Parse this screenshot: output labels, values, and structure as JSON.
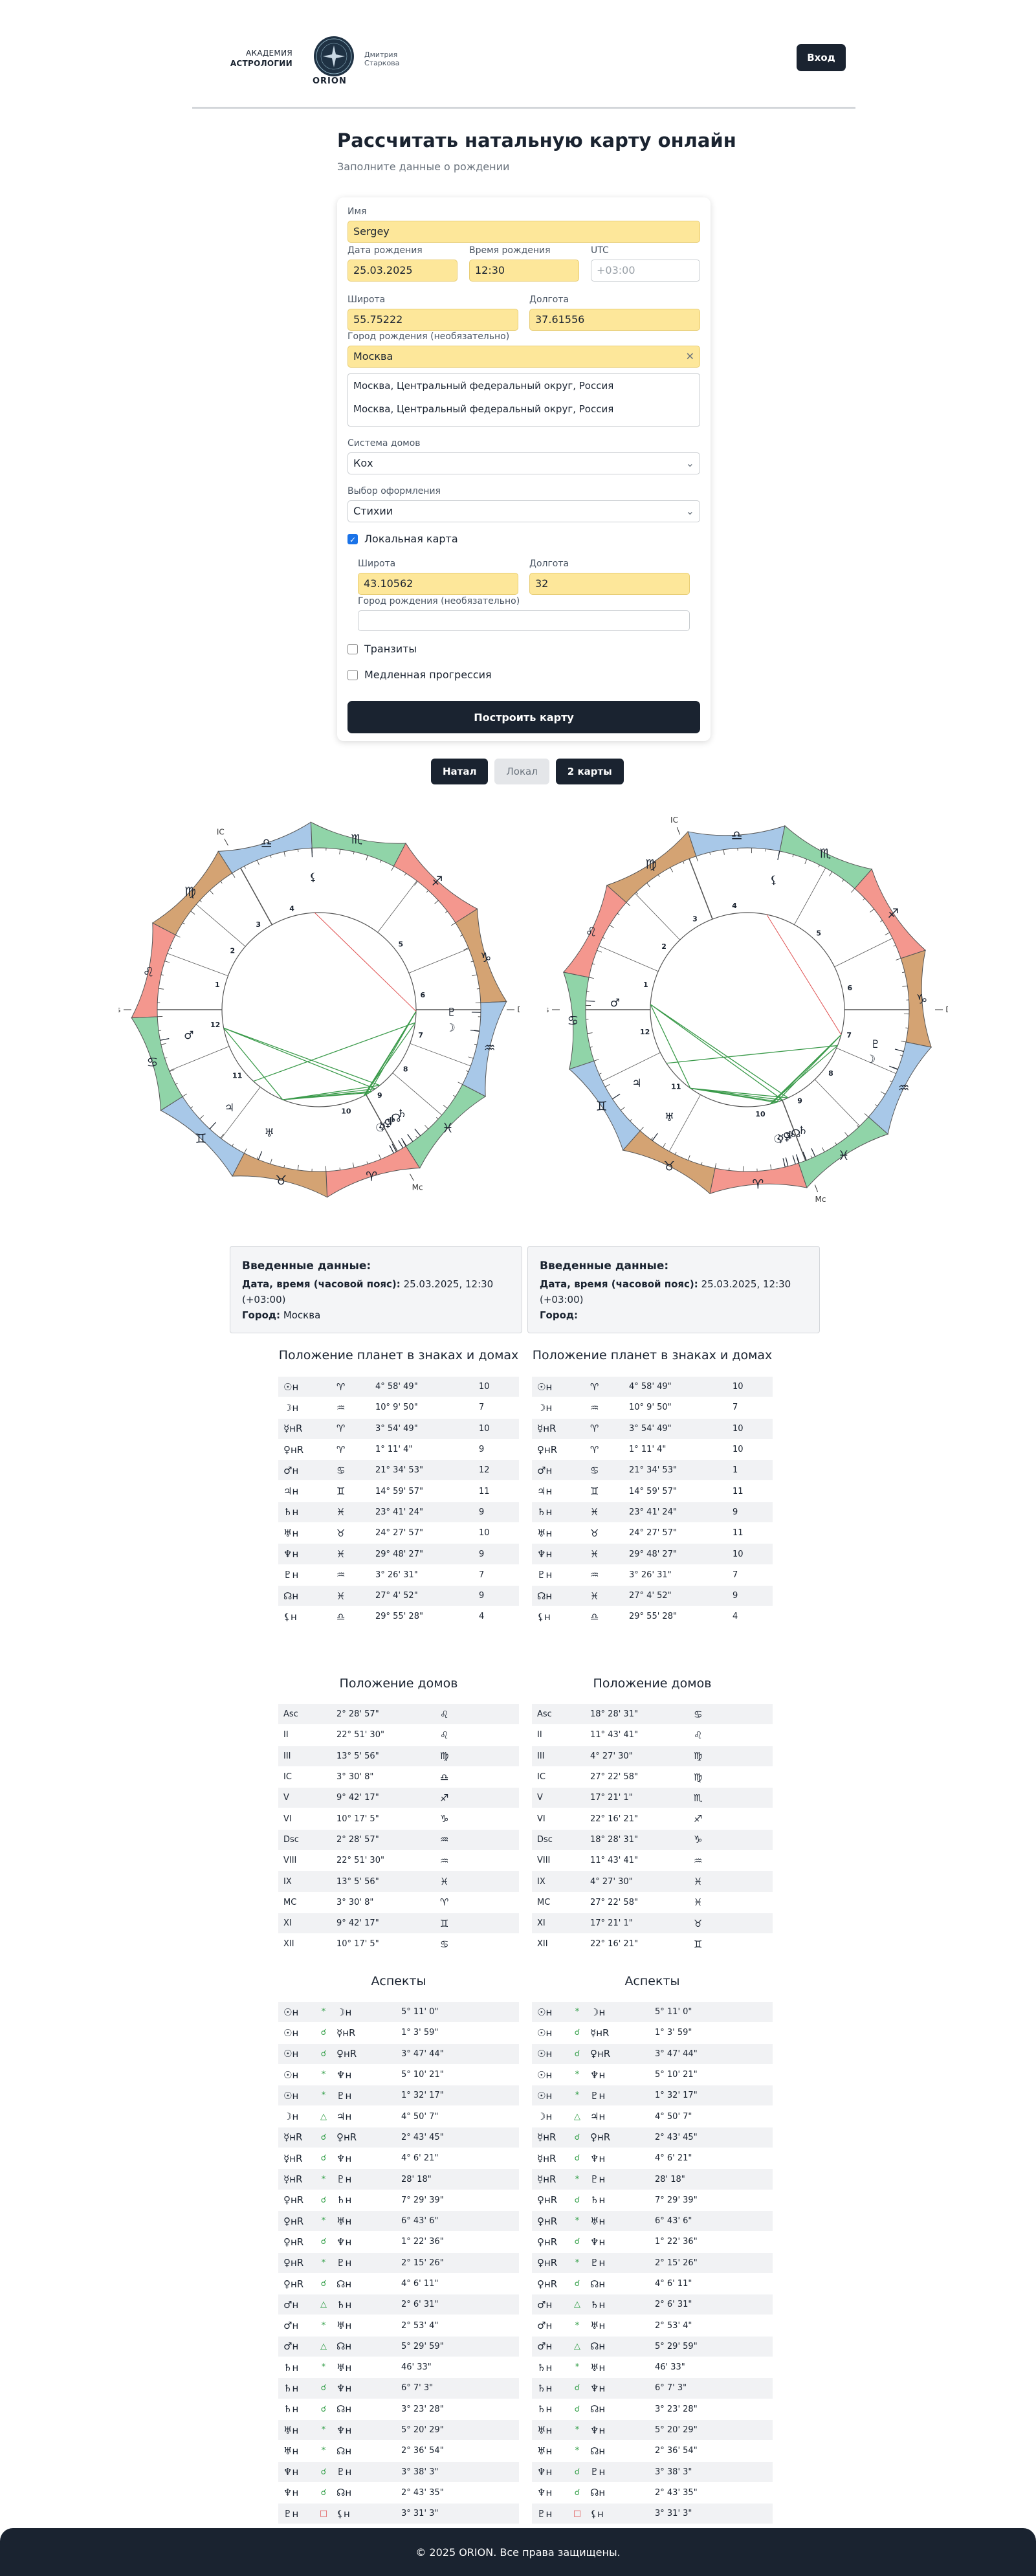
{
  "header": {
    "academy_line1": "АКАДЕМИЯ",
    "academy_line2": "АСТРОЛОГИИ",
    "orion": "ORION",
    "author": "Дмитрия Старкова",
    "login": "Вход"
  },
  "page": {
    "title": "Рассчитать натальную карту онлайн",
    "subtitle": "Заполните данные о рождении"
  },
  "form": {
    "name_label": "Имя",
    "name_value": "Sergey",
    "date_label": "Дата рождения",
    "date_value": "25.03.2025",
    "time_label": "Время рождения",
    "time_value": "12:30",
    "utc_label": "UTC",
    "utc_placeholder": "+03:00",
    "lat_label": "Широта",
    "lat_value": "55.75222",
    "lon_label": "Долгота",
    "lon_value": "37.61556",
    "city_label": "Город рождения (необязательно)",
    "city_value": "Москва",
    "suggestions": [
      "Москва, Центральный федеральный округ, Россия",
      "Москва, Центральный федеральный округ, Россия"
    ],
    "house_label": "Система домов",
    "house_value": "Кох",
    "style_label": "Выбор оформления",
    "style_value": "Стихии",
    "local_label": "Локальная карта",
    "local_lat_label": "Широта",
    "local_lat_value": "43.10562",
    "local_lon_label": "Долгота",
    "local_lon_value": "32",
    "local_city_label": "Город рождения (необязательно)",
    "transits_label": "Транзиты",
    "progress_label": "Медленная прогрессия",
    "build": "Построить карту"
  },
  "tabs": [
    "Натал",
    "Локал",
    "2 карты"
  ],
  "chart_labels": {
    "asc": "As",
    "dsc": "Ds",
    "mc": "Mc",
    "ic": "IC"
  },
  "info": {
    "left": {
      "title": "Введенные данные:",
      "dt_label": "Дата, время (часовой пояс):",
      "dt_value": "25.03.2025, 12:30 (+03:00)",
      "city_label": "Город:",
      "city_value": "Москва"
    },
    "right": {
      "title": "Введенные данные:",
      "dt_label": "Дата, время (часовой пояс):",
      "dt_value": "25.03.2025, 12:30 (+03:00)",
      "city_label": "Город:",
      "city_value": ""
    }
  },
  "planets_title": "Положение планет в знаках и домах",
  "houses_title": "Положение домов",
  "aspects_title": "Аспекты",
  "planets_left": [
    [
      "☉н",
      "♈",
      "4° 58' 49\"",
      "10"
    ],
    [
      "☽н",
      "♒",
      "10° 9' 50\"",
      "7"
    ],
    [
      "☿нR",
      "♈",
      "3° 54' 49\"",
      "10"
    ],
    [
      "♀нR",
      "♈",
      "1° 11' 4\"",
      "9"
    ],
    [
      "♂н",
      "♋",
      "21° 34' 53\"",
      "12"
    ],
    [
      "♃н",
      "♊",
      "14° 59' 57\"",
      "11"
    ],
    [
      "♄н",
      "♓",
      "23° 41' 24\"",
      "9"
    ],
    [
      "♅н",
      "♉",
      "24° 27' 57\"",
      "10"
    ],
    [
      "♆н",
      "♓",
      "29° 48' 27\"",
      "9"
    ],
    [
      "♇н",
      "♒",
      "3° 26' 31\"",
      "7"
    ],
    [
      "☊н",
      "♓",
      "27° 4' 52\"",
      "9"
    ],
    [
      "⚸н",
      "♎",
      "29° 55' 28\"",
      "4"
    ]
  ],
  "planets_right": [
    [
      "☉н",
      "♈",
      "4° 58' 49\"",
      "10"
    ],
    [
      "☽н",
      "♒",
      "10° 9' 50\"",
      "7"
    ],
    [
      "☿нR",
      "♈",
      "3° 54' 49\"",
      "10"
    ],
    [
      "♀нR",
      "♈",
      "1° 11' 4\"",
      "10"
    ],
    [
      "♂н",
      "♋",
      "21° 34' 53\"",
      "1"
    ],
    [
      "♃н",
      "♊",
      "14° 59' 57\"",
      "11"
    ],
    [
      "♄н",
      "♓",
      "23° 41' 24\"",
      "9"
    ],
    [
      "♅н",
      "♉",
      "24° 27' 57\"",
      "11"
    ],
    [
      "♆н",
      "♓",
      "29° 48' 27\"",
      "10"
    ],
    [
      "♇н",
      "♒",
      "3° 26' 31\"",
      "7"
    ],
    [
      "☊н",
      "♓",
      "27° 4' 52\"",
      "9"
    ],
    [
      "⚸н",
      "♎",
      "29° 55' 28\"",
      "4"
    ]
  ],
  "houses_left": [
    [
      "Asc",
      "2° 28' 57\"",
      "♌"
    ],
    [
      "II",
      "22° 51' 30\"",
      "♌"
    ],
    [
      "III",
      "13° 5' 56\"",
      "♍"
    ],
    [
      "IC",
      "3° 30' 8\"",
      "♎"
    ],
    [
      "V",
      "9° 42' 17\"",
      "♐"
    ],
    [
      "VI",
      "10° 17' 5\"",
      "♑"
    ],
    [
      "Dsc",
      "2° 28' 57\"",
      "♒"
    ],
    [
      "VIII",
      "22° 51' 30\"",
      "♒"
    ],
    [
      "IX",
      "13° 5' 56\"",
      "♓"
    ],
    [
      "MC",
      "3° 30' 8\"",
      "♈"
    ],
    [
      "XI",
      "9° 42' 17\"",
      "♊"
    ],
    [
      "XII",
      "10° 17' 5\"",
      "♋"
    ]
  ],
  "houses_right": [
    [
      "Asc",
      "18° 28' 31\"",
      "♋"
    ],
    [
      "II",
      "11° 43' 41\"",
      "♌"
    ],
    [
      "III",
      "4° 27' 30\"",
      "♍"
    ],
    [
      "IC",
      "27° 22' 58\"",
      "♍"
    ],
    [
      "V",
      "17° 21' 1\"",
      "♏"
    ],
    [
      "VI",
      "22° 16' 21\"",
      "♐"
    ],
    [
      "Dsc",
      "18° 28' 31\"",
      "♑"
    ],
    [
      "VIII",
      "11° 43' 41\"",
      "♒"
    ],
    [
      "IX",
      "4° 27' 30\"",
      "♓"
    ],
    [
      "MC",
      "27° 22' 58\"",
      "♓"
    ],
    [
      "XI",
      "17° 21' 1\"",
      "♉"
    ],
    [
      "XII",
      "22° 16' 21\"",
      "♊"
    ]
  ],
  "aspects_left": [
    [
      "☉н",
      "*",
      "☽н",
      "5° 11' 0\""
    ],
    [
      "☉н",
      "☌",
      "☿нR",
      "1° 3' 59\""
    ],
    [
      "☉н",
      "☌",
      "♀нR",
      "3° 47' 44\""
    ],
    [
      "☉н",
      "*",
      "♆н",
      "5° 10' 21\""
    ],
    [
      "☉н",
      "*",
      "♇н",
      "1° 32' 17\""
    ],
    [
      "☽н",
      "△",
      "♃н",
      "4° 50' 7\""
    ],
    [
      "☿нR",
      "☌",
      "♀нR",
      "2° 43' 45\""
    ],
    [
      "☿нR",
      "☌",
      "♆н",
      "4° 6' 21\""
    ],
    [
      "☿нR",
      "*",
      "♇н",
      "28' 18\""
    ],
    [
      "♀нR",
      "☌",
      "♄н",
      "7° 29' 39\""
    ],
    [
      "♀нR",
      "*",
      "♅н",
      "6° 43' 6\""
    ],
    [
      "♀нR",
      "☌",
      "♆н",
      "1° 22' 36\""
    ],
    [
      "♀нR",
      "*",
      "♇н",
      "2° 15' 26\""
    ],
    [
      "♀нR",
      "☌",
      "☊н",
      "4° 6' 11\""
    ],
    [
      "♂н",
      "△",
      "♄н",
      "2° 6' 31\""
    ],
    [
      "♂н",
      "*",
      "♅н",
      "2° 53' 4\""
    ],
    [
      "♂н",
      "△",
      "☊н",
      "5° 29' 59\""
    ],
    [
      "♄н",
      "*",
      "♅н",
      "46' 33\""
    ],
    [
      "♄н",
      "☌",
      "♆н",
      "6° 7' 3\""
    ],
    [
      "♄н",
      "☌",
      "☊н",
      "3° 23' 28\""
    ],
    [
      "♅н",
      "*",
      "♆н",
      "5° 20' 29\""
    ],
    [
      "♅н",
      "*",
      "☊н",
      "2° 36' 54\""
    ],
    [
      "♆н",
      "☌",
      "♇н",
      "3° 38' 3\""
    ],
    [
      "♆н",
      "☌",
      "☊н",
      "2° 43' 35\""
    ],
    [
      "♇н",
      "□",
      "⚸н",
      "3° 31' 3\""
    ]
  ],
  "aspects_right": [
    [
      "☉н",
      "*",
      "☽н",
      "5° 11' 0\""
    ],
    [
      "☉н",
      "☌",
      "☿нR",
      "1° 3' 59\""
    ],
    [
      "☉н",
      "☌",
      "♀нR",
      "3° 47' 44\""
    ],
    [
      "☉н",
      "*",
      "♆н",
      "5° 10' 21\""
    ],
    [
      "☉н",
      "*",
      "♇н",
      "1° 32' 17\""
    ],
    [
      "☽н",
      "△",
      "♃н",
      "4° 50' 7\""
    ],
    [
      "☿нR",
      "☌",
      "♀нR",
      "2° 43' 45\""
    ],
    [
      "☿нR",
      "☌",
      "♆н",
      "4° 6' 21\""
    ],
    [
      "☿нR",
      "*",
      "♇н",
      "28' 18\""
    ],
    [
      "♀нR",
      "☌",
      "♄н",
      "7° 29' 39\""
    ],
    [
      "♀нR",
      "*",
      "♅н",
      "6° 43' 6\""
    ],
    [
      "♀нR",
      "☌",
      "♆н",
      "1° 22' 36\""
    ],
    [
      "♀нR",
      "*",
      "♇н",
      "2° 15' 26\""
    ],
    [
      "♀нR",
      "☌",
      "☊н",
      "4° 6' 11\""
    ],
    [
      "♂н",
      "△",
      "♄н",
      "2° 6' 31\""
    ],
    [
      "♂н",
      "*",
      "♅н",
      "2° 53' 4\""
    ],
    [
      "♂н",
      "△",
      "☊н",
      "5° 29' 59\""
    ],
    [
      "♄н",
      "*",
      "♅н",
      "46' 33\""
    ],
    [
      "♄н",
      "☌",
      "♆н",
      "6° 7' 3\""
    ],
    [
      "♄н",
      "☌",
      "☊н",
      "3° 23' 28\""
    ],
    [
      "♅н",
      "*",
      "♆н",
      "5° 20' 29\""
    ],
    [
      "♅н",
      "*",
      "☊н",
      "2° 36' 54\""
    ],
    [
      "♆н",
      "☌",
      "♇н",
      "3° 38' 3\""
    ],
    [
      "♆н",
      "☌",
      "☊н",
      "2° 43' 35\""
    ],
    [
      "♇н",
      "□",
      "⚸н",
      "3° 31' 3\""
    ]
  ],
  "footer": "© 2025 ORION. Все права защищены.",
  "colors": {
    "primary": "#1a2330",
    "highlight": "#fde79a",
    "aspect_green": "#3a9a4a",
    "aspect_red": "#e05050",
    "fire": "#f4978e",
    "earth": "#d4a373",
    "air": "#a8c8e8",
    "water": "#90d4a8"
  }
}
